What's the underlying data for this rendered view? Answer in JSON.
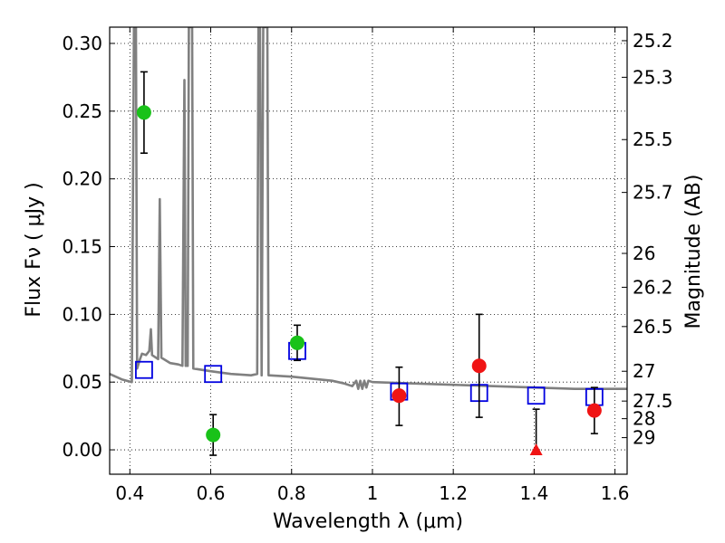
{
  "chart_data": {
    "type": "scatter",
    "xlabel": "Wavelength  λ (μm)",
    "ylabel": "Flux  Fν  ( μJy )",
    "ylabel_right": "Magnitude (AB)",
    "xlim": [
      0.35,
      1.63
    ],
    "ylim": [
      -0.018,
      0.312
    ],
    "x_ticks": [
      0.4,
      0.6,
      0.8,
      1.0,
      1.2,
      1.4,
      1.6
    ],
    "x_tick_labels": [
      "0.4",
      "0.6",
      "0.8",
      "1",
      "1.2",
      "1.4",
      "1.6"
    ],
    "y_ticks": [
      0.0,
      0.05,
      0.1,
      0.15,
      0.2,
      0.25,
      0.3
    ],
    "y_tick_labels": [
      "0.00",
      "0.05",
      "0.10",
      "0.15",
      "0.20",
      "0.25",
      "0.30"
    ],
    "right_ticks": [
      {
        "label": "25.2",
        "flux": 0.302
      },
      {
        "label": "25.3",
        "flux": 0.275
      },
      {
        "label": "25.5",
        "flux": 0.229
      },
      {
        "label": "25.7",
        "flux": 0.19
      },
      {
        "label": "26",
        "flux": 0.145
      },
      {
        "label": "26.2",
        "flux": 0.12
      },
      {
        "label": "26.5",
        "flux": 0.091
      },
      {
        "label": "27",
        "flux": 0.058
      },
      {
        "label": "27.5",
        "flux": 0.036
      },
      {
        "label": "28",
        "flux": 0.023
      },
      {
        "label": "29",
        "flux": 0.009
      }
    ],
    "grid": true,
    "colors": {
      "green": "#19c219",
      "red": "#f01414",
      "blue": "#0000e0",
      "model": "#808080"
    },
    "series": [
      {
        "marker": "circle",
        "color": "green",
        "points": [
          {
            "x": 0.435,
            "y": 0.249,
            "lo": 0.219,
            "hi": 0.279
          },
          {
            "x": 0.606,
            "y": 0.011,
            "lo": -0.004,
            "hi": 0.026
          },
          {
            "x": 0.814,
            "y": 0.079,
            "lo": 0.066,
            "hi": 0.092
          }
        ]
      },
      {
        "marker": "circle",
        "color": "red",
        "points": [
          {
            "x": 1.066,
            "y": 0.04,
            "lo": 0.018,
            "hi": 0.061
          },
          {
            "x": 1.264,
            "y": 0.062,
            "lo": 0.024,
            "hi": 0.1
          },
          {
            "x": 1.549,
            "y": 0.029,
            "lo": 0.012,
            "hi": 0.046
          }
        ]
      },
      {
        "marker": "triangle",
        "color": "red",
        "points": [
          {
            "x": 1.405,
            "y": 0.0,
            "lo": 0.0,
            "hi": 0.03
          }
        ]
      },
      {
        "marker": "square",
        "color": "blue",
        "points": [
          {
            "x": 0.435,
            "y": 0.059
          },
          {
            "x": 0.606,
            "y": 0.056
          },
          {
            "x": 0.814,
            "y": 0.073
          },
          {
            "x": 1.066,
            "y": 0.043
          },
          {
            "x": 1.264,
            "y": 0.042
          },
          {
            "x": 1.405,
            "y": 0.04
          },
          {
            "x": 1.549,
            "y": 0.039
          }
        ]
      }
    ],
    "model_spectrum": [
      [
        0.35,
        0.056
      ],
      [
        0.38,
        0.052
      ],
      [
        0.405,
        0.05
      ],
      [
        0.41,
        0.311
      ],
      [
        0.415,
        0.312
      ],
      [
        0.418,
        0.06
      ],
      [
        0.425,
        0.067
      ],
      [
        0.43,
        0.071
      ],
      [
        0.44,
        0.07
      ],
      [
        0.448,
        0.073
      ],
      [
        0.452,
        0.089
      ],
      [
        0.455,
        0.07
      ],
      [
        0.47,
        0.067
      ],
      [
        0.474,
        0.185
      ],
      [
        0.478,
        0.068
      ],
      [
        0.5,
        0.064
      ],
      [
        0.52,
        0.063
      ],
      [
        0.53,
        0.062
      ],
      [
        0.535,
        0.273
      ],
      [
        0.538,
        0.062
      ],
      [
        0.543,
        0.062
      ],
      [
        0.546,
        0.312
      ],
      [
        0.548,
        0.312
      ],
      [
        0.551,
        0.312
      ],
      [
        0.554,
        0.312
      ],
      [
        0.557,
        0.06
      ],
      [
        0.6,
        0.058
      ],
      [
        0.65,
        0.056
      ],
      [
        0.7,
        0.055
      ],
      [
        0.715,
        0.056
      ],
      [
        0.718,
        0.312
      ],
      [
        0.722,
        0.312
      ],
      [
        0.726,
        0.055
      ],
      [
        0.73,
        0.312
      ],
      [
        0.74,
        0.312
      ],
      [
        0.743,
        0.055
      ],
      [
        0.8,
        0.054
      ],
      [
        0.9,
        0.051
      ],
      [
        0.93,
        0.049
      ],
      [
        0.95,
        0.047
      ],
      [
        0.96,
        0.051
      ],
      [
        0.965,
        0.045
      ],
      [
        0.97,
        0.051
      ],
      [
        0.975,
        0.045
      ],
      [
        0.98,
        0.051
      ],
      [
        0.985,
        0.046
      ],
      [
        0.99,
        0.051
      ],
      [
        1.0,
        0.05
      ],
      [
        1.1,
        0.049
      ],
      [
        1.2,
        0.048
      ],
      [
        1.3,
        0.047
      ],
      [
        1.4,
        0.046
      ],
      [
        1.5,
        0.045
      ],
      [
        1.63,
        0.045
      ]
    ]
  }
}
